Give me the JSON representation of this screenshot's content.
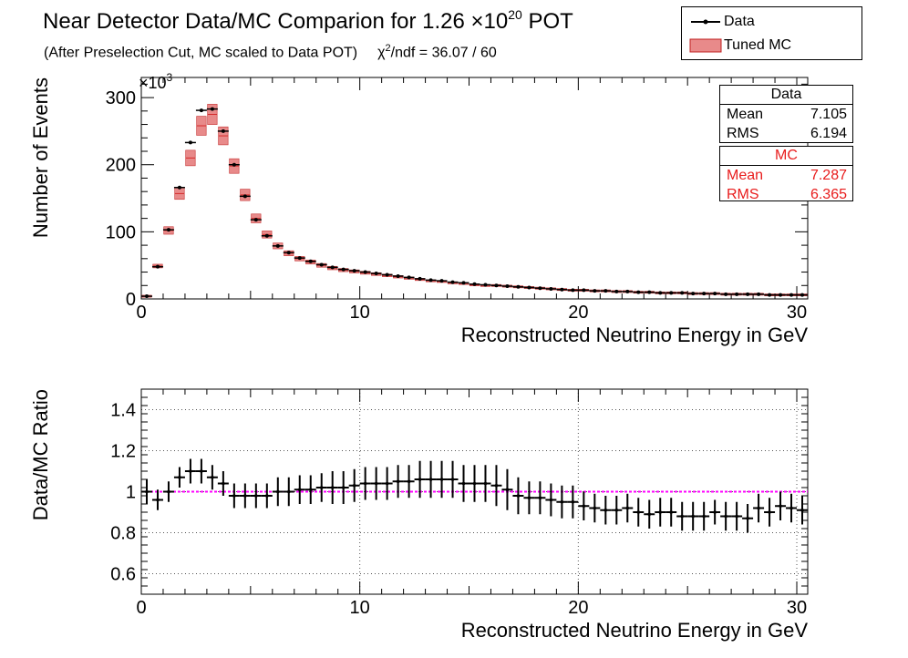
{
  "title": {
    "main": "Near Detector Data/MC Comparion for 1.26 ×10",
    "exp": "20",
    "suffix": " POT"
  },
  "subtitle": {
    "text": "(After Preselection Cut, MC scaled to Data POT)",
    "chi_prefix": "χ",
    "chi_exp": "2",
    "chi_text": "/ndf = 36.07 / 60"
  },
  "legend": {
    "data_label": "Data",
    "mc_label": "Tuned MC"
  },
  "stats": {
    "data": {
      "title": "Data",
      "mean_label": "Mean",
      "mean": "7.105",
      "rms_label": "RMS",
      "rms": "6.194"
    },
    "mc": {
      "title": "MC",
      "mean_label": "Mean",
      "mean": "7.287",
      "rms_label": "RMS",
      "rms": "6.365"
    }
  },
  "colors": {
    "data": "#000000",
    "mc": "#d42a2a",
    "mc_band": "#e88a8a",
    "ratio_line": "#ff00ff",
    "grid": "#555555"
  },
  "chart_data": [
    {
      "type": "bar",
      "xlabel": "Reconstructed Neutrino Energy in GeV",
      "ylabel": "Number of Events",
      "y_multiplier": "×10",
      "y_multiplier_exp": "3",
      "xlim": [
        0,
        30.5
      ],
      "ylim": [
        0,
        330
      ],
      "x_ticks": [
        0,
        10,
        20,
        30
      ],
      "y_ticks": [
        0,
        100,
        200,
        300
      ],
      "bin_width": 0.5,
      "x": [
        0.25,
        0.75,
        1.25,
        1.75,
        2.25,
        2.75,
        3.25,
        3.75,
        4.25,
        4.75,
        5.25,
        5.75,
        6.25,
        6.75,
        7.25,
        7.75,
        8.25,
        8.75,
        9.25,
        9.75,
        10.25,
        10.75,
        11.25,
        11.75,
        12.25,
        12.75,
        13.25,
        13.75,
        14.25,
        14.75,
        15.25,
        15.75,
        16.25,
        16.75,
        17.25,
        17.75,
        18.25,
        18.75,
        19.25,
        19.75,
        20.25,
        20.75,
        21.25,
        21.75,
        22.25,
        22.75,
        23.25,
        23.75,
        24.25,
        24.75,
        25.25,
        25.75,
        26.25,
        26.75,
        27.25,
        27.75,
        28.25,
        28.75,
        29.25,
        29.75,
        30.25
      ],
      "series": [
        {
          "name": "Data",
          "values": [
            4,
            48,
            103,
            166,
            233,
            281,
            283,
            250,
            200,
            153,
            118,
            94,
            79,
            69,
            61,
            56,
            51,
            47,
            44,
            42,
            40,
            38,
            36,
            34,
            32,
            30,
            28,
            27,
            25,
            24,
            22,
            21,
            20,
            19,
            18,
            17,
            16,
            15,
            14,
            13,
            13,
            12,
            12,
            11,
            11,
            10,
            10,
            9,
            9,
            9,
            8,
            8,
            8,
            7,
            7,
            7,
            7,
            6,
            6,
            6,
            6
          ]
        },
        {
          "name": "Tuned MC",
          "values": [
            4,
            49,
            102,
            157,
            210,
            258,
            275,
            243,
            198,
            155,
            120,
            96,
            79,
            68,
            60,
            55,
            50,
            46,
            43,
            41,
            39,
            37,
            35,
            33,
            31,
            29,
            27,
            26,
            24,
            23,
            21,
            20,
            20,
            19,
            18,
            17,
            16,
            15,
            14,
            13,
            13,
            12,
            12,
            11,
            11,
            10,
            10,
            9,
            9,
            9,
            8,
            8,
            8,
            7,
            7,
            7,
            7,
            6,
            6,
            6,
            6
          ]
        }
      ]
    },
    {
      "type": "scatter",
      "xlabel": "Reconstructed Neutrino Energy in GeV",
      "ylabel": "Data/MC Ratio",
      "xlim": [
        0,
        30.5
      ],
      "ylim": [
        0.5,
        1.5
      ],
      "x_ticks": [
        0,
        10,
        20,
        30
      ],
      "y_ticks": [
        0.6,
        0.8,
        1,
        1.2,
        1.4
      ],
      "reference_line": 1,
      "x": [
        0.25,
        0.75,
        1.25,
        1.75,
        2.25,
        2.75,
        3.25,
        3.75,
        4.25,
        4.75,
        5.25,
        5.75,
        6.25,
        6.75,
        7.25,
        7.75,
        8.25,
        8.75,
        9.25,
        9.75,
        10.25,
        10.75,
        11.25,
        11.75,
        12.25,
        12.75,
        13.25,
        13.75,
        14.25,
        14.75,
        15.25,
        15.75,
        16.25,
        16.75,
        17.25,
        17.75,
        18.25,
        18.75,
        19.25,
        19.75,
        20.25,
        20.75,
        21.25,
        21.75,
        22.25,
        22.75,
        23.25,
        23.75,
        24.25,
        24.75,
        25.25,
        25.75,
        26.25,
        26.75,
        27.25,
        27.75,
        28.25,
        28.75,
        29.25,
        29.75,
        30.25
      ],
      "values": [
        1.0,
        0.96,
        1.0,
        1.07,
        1.1,
        1.1,
        1.07,
        1.04,
        0.98,
        0.98,
        0.98,
        0.98,
        1.0,
        1.0,
        1.01,
        1.01,
        1.02,
        1.02,
        1.02,
        1.03,
        1.04,
        1.04,
        1.04,
        1.05,
        1.05,
        1.06,
        1.06,
        1.06,
        1.06,
        1.04,
        1.04,
        1.04,
        1.03,
        1.01,
        0.98,
        0.97,
        0.97,
        0.96,
        0.95,
        0.95,
        0.93,
        0.92,
        0.91,
        0.91,
        0.92,
        0.9,
        0.89,
        0.9,
        0.9,
        0.88,
        0.88,
        0.88,
        0.9,
        0.88,
        0.88,
        0.87,
        0.92,
        0.9,
        0.93,
        0.92,
        0.91
      ],
      "errors": [
        0.06,
        0.05,
        0.05,
        0.05,
        0.06,
        0.06,
        0.06,
        0.06,
        0.06,
        0.06,
        0.06,
        0.06,
        0.07,
        0.07,
        0.07,
        0.07,
        0.07,
        0.08,
        0.08,
        0.08,
        0.08,
        0.08,
        0.08,
        0.08,
        0.08,
        0.09,
        0.09,
        0.09,
        0.09,
        0.09,
        0.09,
        0.09,
        0.1,
        0.1,
        0.09,
        0.08,
        0.08,
        0.08,
        0.08,
        0.08,
        0.07,
        0.07,
        0.07,
        0.07,
        0.07,
        0.07,
        0.07,
        0.07,
        0.07,
        0.07,
        0.07,
        0.07,
        0.06,
        0.07,
        0.07,
        0.07,
        0.07,
        0.07,
        0.07,
        0.07,
        0.07
      ]
    }
  ]
}
